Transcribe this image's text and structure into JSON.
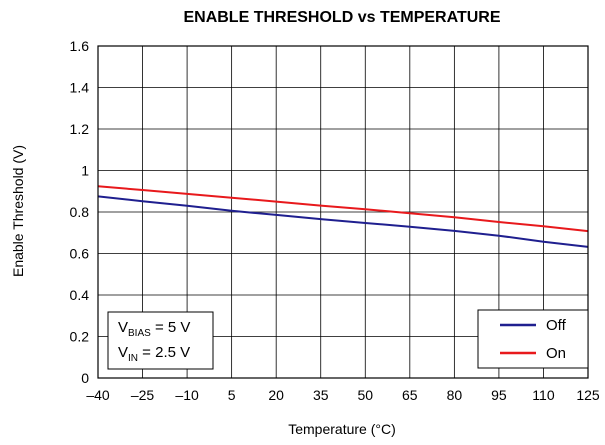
{
  "chart_data": {
    "type": "line",
    "title": "ENABLE THRESHOLD vs TEMPERATURE",
    "xlabel": "Temperature (°C)",
    "ylabel": "Enable Threshold (V)",
    "xlim": [
      -40,
      125
    ],
    "ylim": [
      0,
      1.6
    ],
    "x_ticks": [
      "–40",
      "–25",
      "–10",
      "5",
      "20",
      "35",
      "50",
      "65",
      "80",
      "95",
      "110",
      "125"
    ],
    "y_ticks": [
      "0",
      "0.2",
      "0.4",
      "0.6",
      "0.8",
      "1",
      "1.2",
      "1.4",
      "1.6"
    ],
    "grid": true,
    "legend_position": "bottom-right",
    "series": [
      {
        "name": "Off",
        "color": "#1f1f8f",
        "x": [
          -40,
          -25,
          -10,
          5,
          20,
          35,
          50,
          65,
          80,
          95,
          110,
          125
        ],
        "values": [
          0.875,
          0.852,
          0.83,
          0.806,
          0.786,
          0.766,
          0.747,
          0.729,
          0.709,
          0.686,
          0.657,
          0.632
        ]
      },
      {
        "name": "On",
        "color": "#e8191c",
        "x": [
          -40,
          -25,
          -10,
          5,
          20,
          35,
          50,
          65,
          80,
          95,
          110,
          125
        ],
        "values": [
          0.924,
          0.906,
          0.887,
          0.869,
          0.85,
          0.831,
          0.813,
          0.794,
          0.775,
          0.752,
          0.731,
          0.708
        ]
      }
    ],
    "annotations": [
      {
        "main": "V",
        "sub": "BIAS",
        "rest": " = 5 V"
      },
      {
        "main": "V",
        "sub": "IN",
        "rest": " = 2.5 V"
      }
    ]
  }
}
